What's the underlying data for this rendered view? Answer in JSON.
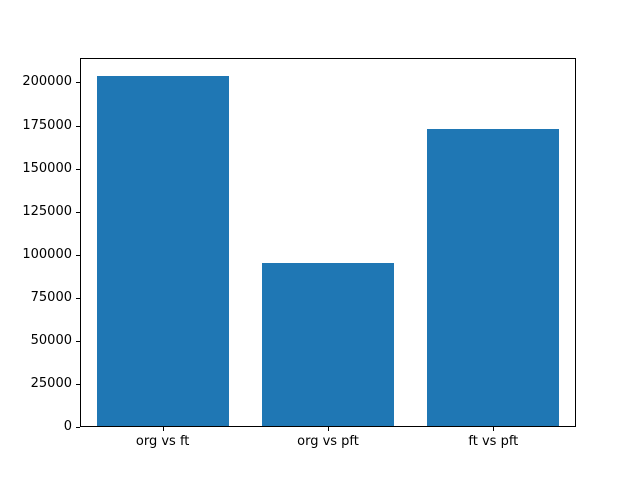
{
  "chart_data": {
    "type": "bar",
    "categories": [
      "org vs ft",
      "org vs pft",
      "ft vs pft"
    ],
    "values": [
      204000,
      95000,
      173000
    ],
    "bar_color": "#1f77b4",
    "title": "",
    "xlabel": "",
    "ylabel": "",
    "ylim": [
      0,
      214200
    ],
    "yticks": [
      0,
      25000,
      50000,
      75000,
      100000,
      125000,
      150000,
      175000,
      200000
    ],
    "xlim": [
      -0.5,
      2.5
    ],
    "bar_width": 0.8,
    "grid": false,
    "legend": null,
    "background_color": "#ffffff",
    "axis_color": "#000000"
  }
}
